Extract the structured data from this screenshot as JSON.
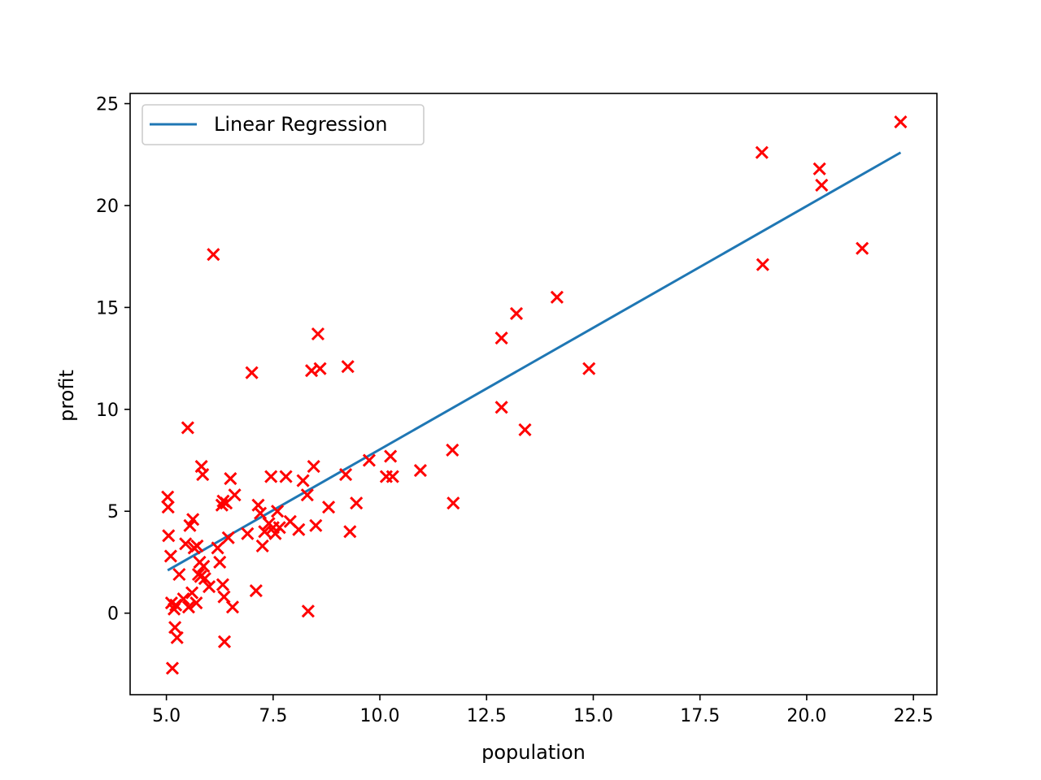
{
  "chart_data": {
    "type": "scatter",
    "title": "",
    "xlabel": "population",
    "ylabel": "profit",
    "xlim": [
      4.15,
      23.05
    ],
    "ylim": [
      -4.0,
      25.5
    ],
    "xticks": [
      5.0,
      7.5,
      10.0,
      12.5,
      15.0,
      17.5,
      20.0,
      22.5
    ],
    "xtick_labels": [
      "5.0",
      "7.5",
      "10.0",
      "12.5",
      "15.0",
      "17.5",
      "20.0",
      "22.5"
    ],
    "yticks": [
      0,
      5,
      10,
      15,
      20,
      25
    ],
    "ytick_labels": [
      "0",
      "5",
      "10",
      "15",
      "20",
      "25"
    ],
    "grid": false,
    "legend": {
      "position": "upper-left",
      "entries": [
        "Linear Regression"
      ]
    },
    "series": [
      {
        "name": "Linear Regression",
        "kind": "line",
        "color": "#1f77b4",
        "x": [
          5.03,
          22.2
        ],
        "y": [
          2.1,
          22.6
        ]
      },
      {
        "kind": "scatter",
        "marker": "x",
        "color": "#ff0000",
        "x": [
          5.03,
          5.04,
          5.05,
          5.1,
          5.12,
          5.14,
          5.18,
          5.2,
          5.22,
          5.25,
          5.3,
          5.4,
          5.45,
          5.5,
          5.52,
          5.55,
          5.6,
          5.62,
          5.65,
          5.7,
          5.72,
          5.75,
          5.78,
          5.8,
          5.82,
          5.85,
          5.87,
          5.9,
          6.0,
          6.1,
          6.2,
          6.25,
          6.3,
          6.32,
          6.33,
          6.35,
          6.36,
          6.4,
          6.45,
          6.5,
          6.55,
          6.6,
          6.9,
          7.0,
          7.1,
          7.15,
          7.2,
          7.25,
          7.3,
          7.4,
          7.45,
          7.5,
          7.55,
          7.6,
          7.65,
          7.8,
          7.9,
          8.1,
          8.2,
          8.3,
          8.32,
          8.4,
          8.45,
          8.5,
          8.55,
          8.6,
          8.8,
          9.2,
          9.25,
          9.3,
          9.45,
          9.75,
          10.15,
          10.25,
          10.3,
          10.95,
          11.7,
          11.72,
          12.85,
          12.85,
          13.2,
          13.4,
          14.15,
          14.9,
          18.95,
          18.97,
          20.3,
          20.35,
          21.3,
          22.2
        ],
        "y": [
          5.7,
          5.2,
          3.8,
          2.8,
          0.5,
          -2.7,
          0.2,
          -0.7,
          0.4,
          -1.2,
          1.9,
          0.7,
          3.4,
          9.1,
          0.3,
          4.3,
          1.0,
          4.6,
          3.2,
          0.5,
          3.3,
          1.9,
          2.5,
          1.8,
          7.2,
          6.8,
          2.3,
          1.7,
          1.3,
          17.6,
          3.2,
          2.5,
          5.3,
          1.4,
          5.5,
          0.8,
          -1.4,
          5.4,
          3.7,
          6.6,
          0.3,
          5.8,
          3.9,
          11.8,
          1.1,
          5.3,
          4.9,
          3.3,
          4.0,
          4.4,
          6.7,
          4.2,
          3.9,
          5.0,
          4.2,
          6.7,
          4.5,
          4.1,
          6.5,
          5.8,
          0.1,
          11.9,
          7.2,
          4.3,
          13.7,
          12.0,
          5.2,
          6.8,
          12.1,
          4.0,
          5.4,
          7.5,
          6.7,
          7.7,
          6.7,
          7.0,
          8.0,
          5.4,
          13.5,
          10.1,
          14.7,
          9.0,
          15.5,
          12.0,
          22.6,
          17.1,
          21.8,
          21.0,
          17.9,
          24.1
        ]
      }
    ]
  }
}
